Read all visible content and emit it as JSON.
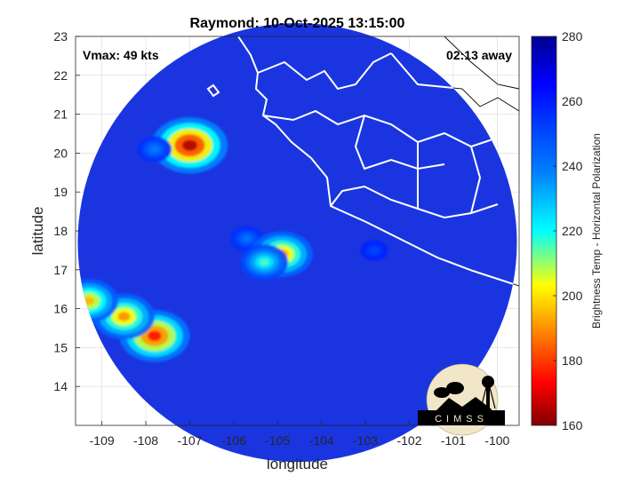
{
  "chart_data": {
    "type": "heatmap",
    "title": "Raymond: 10-Oct-2025 13:15:00",
    "xlabel": "longitude",
    "ylabel": "latitude",
    "xlim": [
      -109.6,
      -99.5
    ],
    "ylim": [
      13,
      23
    ],
    "xticks": [
      "-109",
      "-108",
      "-107",
      "-106",
      "-105",
      "-104",
      "-103",
      "-102",
      "-101",
      "-100"
    ],
    "yticks": [
      "14",
      "15",
      "16",
      "17",
      "18",
      "19",
      "20",
      "21",
      "22",
      "23"
    ],
    "grid": true,
    "annotations": {
      "vmax": "Vmax: 49 kts",
      "time_away": "02:13 away"
    },
    "colorbar": {
      "label": "Brightness Temp - Horizontal Polarization",
      "ticks": [
        "160",
        "180",
        "200",
        "220",
        "240",
        "260",
        "280"
      ],
      "range": [
        160,
        280
      ],
      "colormap": "jet"
    },
    "footprint": {
      "center_lon": -104.55,
      "center_lat": 17.7,
      "radius_deg": 5.0
    },
    "features": [
      {
        "lon": -107.0,
        "lat": 20.2,
        "min_temp": 165
      },
      {
        "lon": -107.8,
        "lat": 20.1,
        "min_temp": 238
      },
      {
        "lon": -105.7,
        "lat": 17.8,
        "min_temp": 240
      },
      {
        "lon": -104.9,
        "lat": 17.4,
        "min_temp": 190
      },
      {
        "lon": -105.3,
        "lat": 17.2,
        "min_temp": 215
      },
      {
        "lon": -107.8,
        "lat": 15.3,
        "min_temp": 175
      },
      {
        "lon": -108.5,
        "lat": 15.8,
        "min_temp": 190
      },
      {
        "lon": -109.3,
        "lat": 16.2,
        "min_temp": 195
      },
      {
        "lon": -102.8,
        "lat": 17.5,
        "min_temp": 250
      }
    ],
    "logo": "CIMSS"
  }
}
